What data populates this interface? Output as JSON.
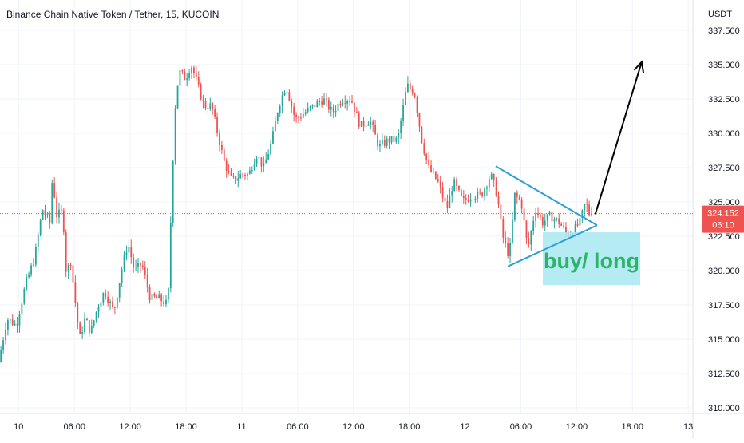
{
  "header": {
    "symbol": "Binance Chain Native Token / Tether",
    "interval": "15",
    "exchange": "KUCOIN",
    "separator": ", "
  },
  "colors": {
    "up": "#26a69a",
    "down": "#ef5350",
    "grid": "#f0f3fa",
    "axis_text": "#131722",
    "price_line": "#ef5350",
    "trend_line": "#2e9fd6",
    "arrow": "#000000",
    "note_bg": "#a8e8f0",
    "note_text": "#2db36a",
    "price_label_bg": "#ef5350"
  },
  "chart_data": {
    "type": "candlestick",
    "quote_currency": "USDT",
    "y_ticks": [
      "337.500",
      "335.000",
      "332.500",
      "330.000",
      "327.500",
      "325.000",
      "322.500",
      "320.000",
      "317.500",
      "315.000",
      "312.500",
      "310.000"
    ],
    "y_tick_values": [
      337.5,
      335.0,
      332.5,
      330.0,
      327.5,
      325.0,
      322.5,
      320.0,
      317.5,
      315.0,
      312.5,
      310.0
    ],
    "ylim": [
      310.0,
      337.5
    ],
    "x_ticks": [
      "10",
      "06:00",
      "12:00",
      "18:00",
      "11",
      "06:00",
      "12:00",
      "18:00",
      "12",
      "06:00",
      "12:00",
      "18:00",
      "13"
    ],
    "x_tick_hours": [
      0,
      6,
      12,
      18,
      24,
      30,
      36,
      42,
      48,
      54,
      60,
      66,
      72
    ],
    "x_range_hours": [
      -2,
      72.5
    ],
    "current_price": {
      "value": 324.152,
      "label": "324.152",
      "countdown": "06:10"
    },
    "price_path": [
      [
        -2.0,
        313.0
      ],
      [
        -1.0,
        316.5
      ],
      [
        0.0,
        316.0
      ],
      [
        1.0,
        319.0
      ],
      [
        2.0,
        321.0
      ],
      [
        2.8,
        324.5
      ],
      [
        3.6,
        323.5
      ],
      [
        3.9,
        327.0
      ],
      [
        4.3,
        324.0
      ],
      [
        5.0,
        324.3
      ],
      [
        5.4,
        319.5
      ],
      [
        5.8,
        321.0
      ],
      [
        6.3,
        318.0
      ],
      [
        6.8,
        315.0
      ],
      [
        7.4,
        316.5
      ],
      [
        8.0,
        315.5
      ],
      [
        8.8,
        317.5
      ],
      [
        9.5,
        318.5
      ],
      [
        10.5,
        317.0
      ],
      [
        11.3,
        320.0
      ],
      [
        12.0,
        322.0
      ],
      [
        12.7,
        320.0
      ],
      [
        13.5,
        320.5
      ],
      [
        14.4,
        318.0
      ],
      [
        15.3,
        318.0
      ],
      [
        16.3,
        317.5
      ],
      [
        16.8,
        327.5
      ],
      [
        17.1,
        332.0
      ],
      [
        17.5,
        334.5
      ],
      [
        18.2,
        334.0
      ],
      [
        18.8,
        335.0
      ],
      [
        19.5,
        333.5
      ],
      [
        20.2,
        332.0
      ],
      [
        21.0,
        332.0
      ],
      [
        22.3,
        328.0
      ],
      [
        23.2,
        326.5
      ],
      [
        24.2,
        327.0
      ],
      [
        25.0,
        327.0
      ],
      [
        25.8,
        328.5
      ],
      [
        26.6,
        327.5
      ],
      [
        27.5,
        329.5
      ],
      [
        28.2,
        332.0
      ],
      [
        29.0,
        333.5
      ],
      [
        30.0,
        331.0
      ],
      [
        31.0,
        331.5
      ],
      [
        32.0,
        332.0
      ],
      [
        33.0,
        332.5
      ],
      [
        34.0,
        331.5
      ],
      [
        35.0,
        332.5
      ],
      [
        36.0,
        332.5
      ],
      [
        37.0,
        330.5
      ],
      [
        38.0,
        331.0
      ],
      [
        39.0,
        329.0
      ],
      [
        40.0,
        329.5
      ],
      [
        41.0,
        329.5
      ],
      [
        42.0,
        333.5
      ],
      [
        42.8,
        333.0
      ],
      [
        43.6,
        329.5
      ],
      [
        44.3,
        327.5
      ],
      [
        45.3,
        326.5
      ],
      [
        46.3,
        324.5
      ],
      [
        47.0,
        326.5
      ],
      [
        48.0,
        325.0
      ],
      [
        49.0,
        325.5
      ],
      [
        50.0,
        325.5
      ],
      [
        51.0,
        327.0
      ],
      [
        51.7,
        325.5
      ],
      [
        52.3,
        322.5
      ],
      [
        53.0,
        321.0
      ],
      [
        53.6,
        325.5
      ],
      [
        54.3,
        325.0
      ],
      [
        55.0,
        321.5
      ],
      [
        55.8,
        324.5
      ],
      [
        56.6,
        323.5
      ],
      [
        57.4,
        324.0
      ],
      [
        58.4,
        323.5
      ],
      [
        59.3,
        322.5
      ],
      [
        60.0,
        323.0
      ],
      [
        60.6,
        323.5
      ],
      [
        61.2,
        325.0
      ],
      [
        61.6,
        324.15
      ]
    ],
    "annotations": {
      "note_text": "buy/ long",
      "triangle_upper": [
        [
          51.3,
          327.6
        ],
        [
          62.2,
          323.3
        ]
      ],
      "triangle_lower": [
        [
          52.6,
          320.3
        ],
        [
          62.2,
          323.3
        ]
      ],
      "arrow": [
        [
          62.0,
          324.1
        ],
        [
          67.0,
          335.2
        ]
      ]
    }
  }
}
